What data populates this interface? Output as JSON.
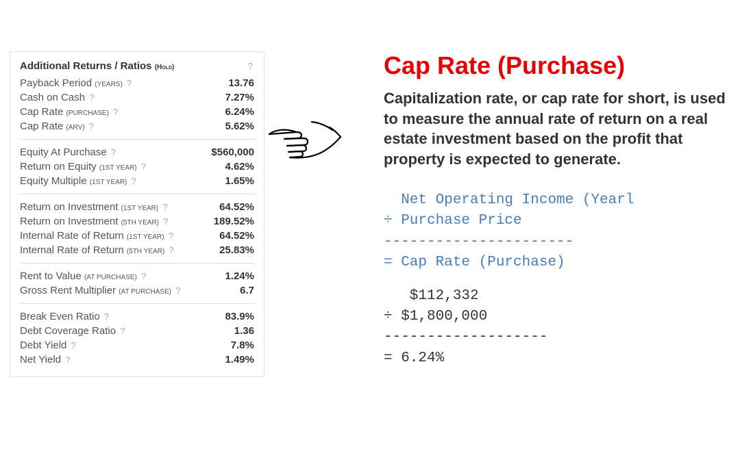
{
  "panel": {
    "title": "Additional Returns / Ratios",
    "title_sub": "(Hold)",
    "groups": [
      [
        {
          "label": "Payback Period",
          "sub": "(Years)",
          "value": "13.76"
        },
        {
          "label": "Cash on Cash",
          "sub": "",
          "value": "7.27%"
        },
        {
          "label": "Cap Rate",
          "sub": "(Purchase)",
          "value": "6.24%"
        },
        {
          "label": "Cap Rate",
          "sub": "(ARV)",
          "value": "5.62%"
        }
      ],
      [
        {
          "label": "Equity At Purchase",
          "sub": "",
          "value": "$560,000"
        },
        {
          "label": "Return on Equity",
          "sub": "(1st Year)",
          "value": "4.62%"
        },
        {
          "label": "Equity Multiple",
          "sub": "(1st Year)",
          "value": "1.65%"
        }
      ],
      [
        {
          "label": "Return on Investment",
          "sub": "(1st Year)",
          "value": "64.52%"
        },
        {
          "label": "Return on Investment",
          "sub": "(5th Year)",
          "value": "189.52%"
        },
        {
          "label": "Internal Rate of Return",
          "sub": "(1st Year)",
          "value": "64.52%"
        },
        {
          "label": "Internal Rate of Return",
          "sub": "(5th Year)",
          "value": "25.83%"
        }
      ],
      [
        {
          "label": "Rent to Value",
          "sub": "(At Purchase)",
          "value": "1.24%"
        },
        {
          "label": "Gross Rent Multiplier",
          "sub": "(At Purchase)",
          "value": "6.7"
        }
      ],
      [
        {
          "label": "Break Even Ratio",
          "sub": "",
          "value": "83.9%"
        },
        {
          "label": "Debt Coverage Ratio",
          "sub": "",
          "value": "1.36"
        },
        {
          "label": "Debt Yield",
          "sub": "",
          "value": "7.8%"
        },
        {
          "label": "Net Yield",
          "sub": "",
          "value": "1.49%"
        }
      ]
    ]
  },
  "explanation": {
    "heading": "Cap Rate (Purchase)",
    "description": "Capitalization rate, or cap rate for short, is used to measure the annual rate of return on a real estate investment based on the profit that property is expected to generate.",
    "formula": "  Net Operating Income (Yearl\n÷ Purchase Price\n----------------------\n= Cap Rate (Purchase)",
    "calc": "   $112,332\n÷ $1,800,000\n-------------------\n= 6.24%"
  },
  "colors": {
    "heading": "#e60000",
    "formula": "#4a7db5",
    "border": "#e0e0e0",
    "text": "#333333",
    "muted": "#555555"
  }
}
